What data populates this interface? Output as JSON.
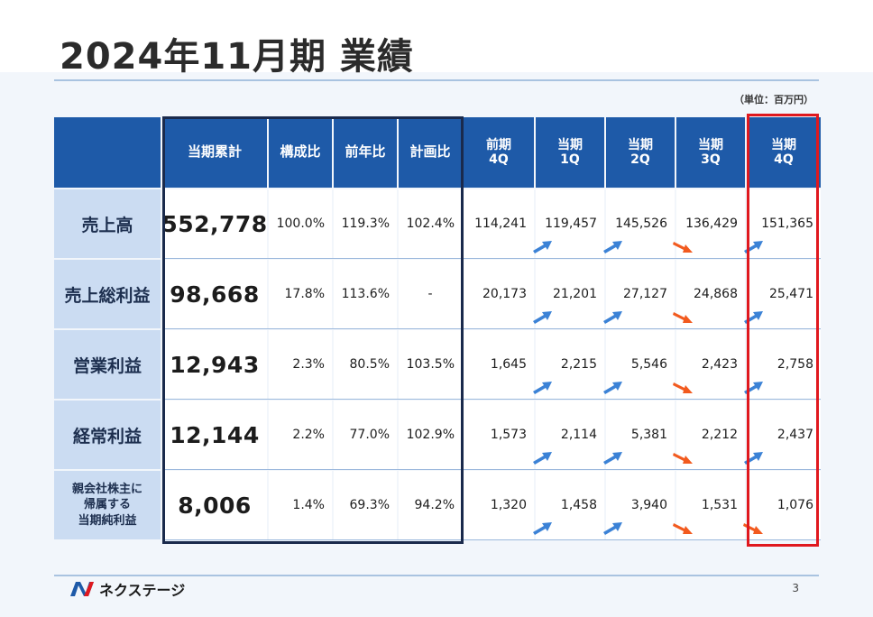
{
  "title": "2024年11月期 業績",
  "unit": "（単位：百万円）",
  "header": {
    "cumulative": "当期累計",
    "composition": "構成比",
    "yoy": "前年比",
    "plan": "計画比",
    "prev4q": [
      "前期",
      "4Q"
    ],
    "q1": [
      "当期",
      "1Q"
    ],
    "q2": [
      "当期",
      "2Q"
    ],
    "q3": [
      "当期",
      "3Q"
    ],
    "q4": [
      "当期",
      "4Q"
    ]
  },
  "rows": [
    {
      "label": [
        "売上高"
      ],
      "cumulative": "552,778",
      "composition": "100.0%",
      "yoy": "119.3%",
      "plan": "102.4%",
      "prev4q": "114,241",
      "q1": "119,457",
      "q2": "145,526",
      "q3": "136,429",
      "q4": "151,365",
      "arrows": [
        "up",
        "up",
        "down",
        "up"
      ]
    },
    {
      "label": [
        "売上総利益"
      ],
      "cumulative": "98,668",
      "composition": "17.8%",
      "yoy": "113.6%",
      "plan": "-",
      "prev4q": "20,173",
      "q1": "21,201",
      "q2": "27,127",
      "q3": "24,868",
      "q4": "25,471",
      "arrows": [
        "up",
        "up",
        "down",
        "up"
      ]
    },
    {
      "label": [
        "営業利益"
      ],
      "cumulative": "12,943",
      "composition": "2.3%",
      "yoy": "80.5%",
      "plan": "103.5%",
      "prev4q": "1,645",
      "q1": "2,215",
      "q2": "5,546",
      "q3": "2,423",
      "q4": "2,758",
      "arrows": [
        "up",
        "up",
        "down",
        "up"
      ]
    },
    {
      "label": [
        "経常利益"
      ],
      "cumulative": "12,144",
      "composition": "2.2%",
      "yoy": "77.0%",
      "plan": "102.9%",
      "prev4q": "1,573",
      "q1": "2,114",
      "q2": "5,381",
      "q3": "2,212",
      "q4": "2,437",
      "arrows": [
        "up",
        "up",
        "down",
        "up"
      ]
    },
    {
      "label": [
        "親会社株主に",
        "帰属する",
        "当期純利益"
      ],
      "cumulative": "8,006",
      "composition": "1.4%",
      "yoy": "69.3%",
      "plan": "94.2%",
      "prev4q": "1,320",
      "q1": "1,458",
      "q2": "3,940",
      "q3": "1,531",
      "q4": "1,076",
      "arrows": [
        "up",
        "up",
        "down",
        "down"
      ]
    }
  ],
  "colors": {
    "header_bg": "#1e5aa8",
    "label_bg": "#cbdcf2",
    "arrow_up": "#3b82d6",
    "arrow_down": "#f25a1e",
    "highlight_red": "#e0181e",
    "highlight_navy": "#1a2a4c"
  },
  "footer": {
    "company": "ネクステージ",
    "page": "3",
    "logo_icon": "nextage-logo-icon"
  }
}
